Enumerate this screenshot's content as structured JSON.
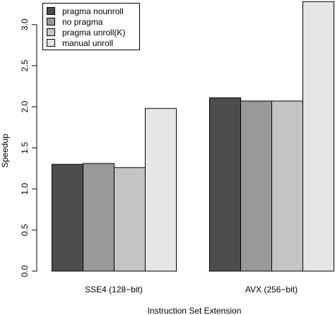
{
  "chart_data": {
    "type": "bar",
    "title": "",
    "xlabel": "Instruction Set Extension",
    "ylabel": "Speedup",
    "categories": [
      "SSE4 (128−bit)",
      "AVX (256−bit)"
    ],
    "series": [
      {
        "name": "pragma nounroll",
        "color": "#4d4d4d",
        "values": [
          1.3,
          2.11
        ]
      },
      {
        "name": "no pragma",
        "color": "#999999",
        "values": [
          1.31,
          2.07
        ]
      },
      {
        "name": "pragma unroll(K)",
        "color": "#c4c4c4",
        "values": [
          1.26,
          2.07
        ]
      },
      {
        "name": "manual unroll",
        "color": "#e6e6e6",
        "values": [
          1.98,
          3.28
        ]
      }
    ],
    "ylim": [
      0,
      3.3
    ],
    "yticks": [
      0.0,
      0.5,
      1.0,
      1.5,
      2.0,
      2.5,
      3.0
    ],
    "ytick_labels": [
      "0.0",
      "0.5",
      "1.0",
      "1.5",
      "2.0",
      "2.5",
      "3.0"
    ],
    "grid": false,
    "legend_position": "top-left"
  }
}
